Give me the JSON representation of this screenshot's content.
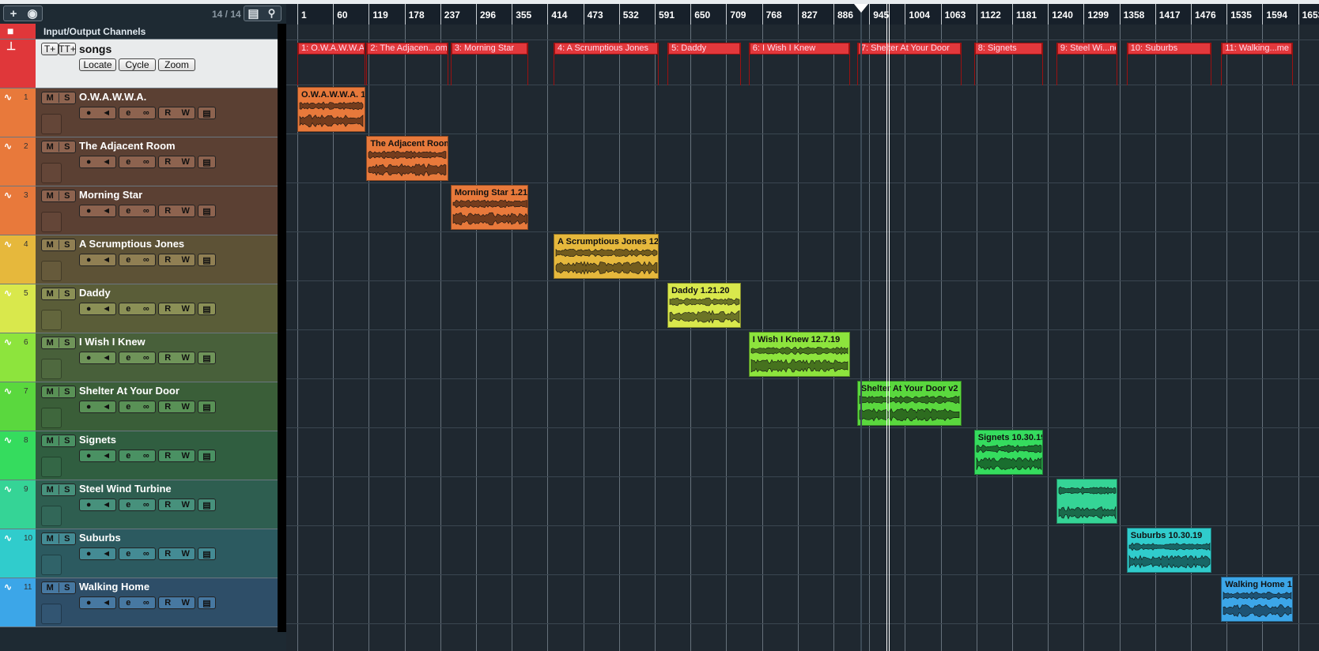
{
  "toolbar": {
    "add_icon": "plus-icon",
    "folder_icon": "track-presets-icon",
    "count": "14 / 14",
    "list_icon": "list-icon",
    "search_icon": "search-icon"
  },
  "io_channels": {
    "label": "Input/Output Channels",
    "icon": "folder-icon"
  },
  "marker_track": {
    "title": "songs",
    "add_marker_label": "T+",
    "add_cycle_label": "TT+",
    "locate": "Locate",
    "cycle": "Cycle",
    "zoom": "Zoom",
    "color": "#e0373a"
  },
  "track_buttons": {
    "mute": "M",
    "solo": "S",
    "read": "R",
    "write": "W"
  },
  "tracks": [
    {
      "num": "1",
      "name": "O.W.A.W.W.A.",
      "color": "#e8793b",
      "bg": "#5b4033",
      "clip": "O.W.A.W.W.A. 1",
      "start": 1,
      "end": 113
    },
    {
      "num": "2",
      "name": "The Adjacent Room",
      "color": "#e8793b",
      "bg": "#5b4033",
      "clip": "The Adjacent Room",
      "start": 115,
      "end": 250
    },
    {
      "num": "3",
      "name": "Morning Star",
      "color": "#e8793b",
      "bg": "#5b4033",
      "clip": "Morning Star 1.21",
      "start": 254,
      "end": 382
    },
    {
      "num": "4",
      "name": "A Scrumptious Jones",
      "color": "#e6b83c",
      "bg": "#5d5236",
      "clip": "A Scrumptious Jones 12.",
      "start": 424,
      "end": 597
    },
    {
      "num": "5",
      "name": "Daddy",
      "color": "#d9e84c",
      "bg": "#5a5d38",
      "clip": "Daddy 1.21.20",
      "start": 612,
      "end": 733
    },
    {
      "num": "6",
      "name": "I Wish I Knew",
      "color": "#8de43d",
      "bg": "#48603a",
      "clip": "I Wish I Knew 12.7.19",
      "start": 746,
      "end": 913
    },
    {
      "num": "7",
      "name": "Shelter At Your Door",
      "color": "#5ad83e",
      "bg": "#3a5e38",
      "clip": "Shelter At Your Door v2",
      "start": 925,
      "end": 1097
    },
    {
      "num": "8",
      "name": "Signets",
      "color": "#35dc5e",
      "bg": "#305e40",
      "clip": "Signets 10.30.19",
      "start": 1118,
      "end": 1232
    },
    {
      "num": "9",
      "name": "Steel Wind Turbine",
      "color": "#35d496",
      "bg": "#2e5e50",
      "clip": "",
      "start": 1254,
      "end": 1354
    },
    {
      "num": "10",
      "name": "Suburbs",
      "color": "#30cccc",
      "bg": "#2c5a60",
      "clip": "Suburbs 10.30.19",
      "start": 1370,
      "end": 1510
    },
    {
      "num": "11",
      "name": "Walking Home",
      "color": "#3ca6e8",
      "bg": "#2e4e68",
      "clip": "Walking Home 1",
      "start": 1526,
      "end": 1645
    }
  ],
  "markers": [
    {
      "label": "1: O.W.A.W.W.A.",
      "start": 1,
      "end": 113
    },
    {
      "label": "2: The Adjacen...om",
      "start": 115,
      "end": 250
    },
    {
      "label": "3: Morning Star",
      "start": 254,
      "end": 382
    },
    {
      "label": "4: A Scrumptious Jones",
      "start": 424,
      "end": 597
    },
    {
      "label": "5: Daddy",
      "start": 612,
      "end": 733
    },
    {
      "label": "6: I Wish I Knew",
      "start": 746,
      "end": 913
    },
    {
      "label": "7: Shelter At Your Door",
      "start": 925,
      "end": 1097
    },
    {
      "label": "8: Signets",
      "start": 1118,
      "end": 1232
    },
    {
      "label": "9: Steel Wi...ne",
      "start": 1254,
      "end": 1354
    },
    {
      "label": "10: Suburbs",
      "start": 1370,
      "end": 1510
    },
    {
      "label": "11: Walking...me",
      "start": 1526,
      "end": 1645
    }
  ],
  "ruler": [
    "1",
    "60",
    "119",
    "178",
    "237",
    "296",
    "355",
    "414",
    "473",
    "532",
    "591",
    "650",
    "709",
    "768",
    "827",
    "886",
    "945",
    "1004",
    "1063",
    "1122",
    "1181",
    "1240",
    "1299",
    "1358",
    "1417",
    "1476",
    "1535",
    "1594",
    "1653"
  ],
  "playhead_bar": 931
}
